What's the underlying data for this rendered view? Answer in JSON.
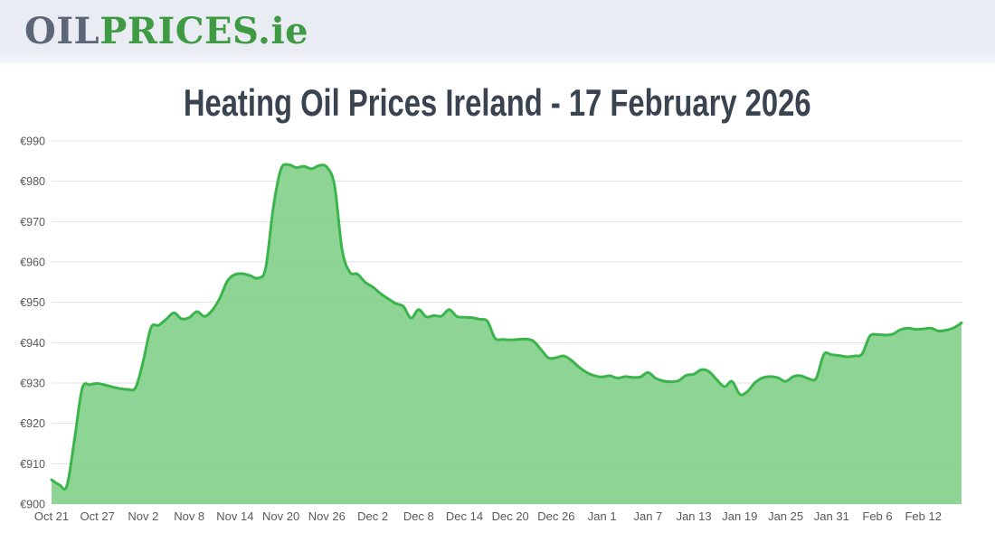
{
  "header": {
    "logo_oil": "OIL",
    "logo_prices": "PRICES",
    "logo_tld": ".ie"
  },
  "title": "Heating Oil Prices Ireland - 17 February 2026",
  "chart_data": {
    "type": "area",
    "title": "Heating Oil Prices Ireland - 17 February 2026",
    "currency_prefix": "€",
    "x_tick_labels": [
      "Oct 21",
      "Oct 27",
      "Nov 2",
      "Nov 8",
      "Nov 14",
      "Nov 20",
      "Nov 26",
      "Dec 2",
      "Dec 8",
      "Dec 14",
      "Dec 20",
      "Dec 26",
      "Jan 1",
      "Jan 7",
      "Jan 13",
      "Jan 19",
      "Jan 25",
      "Jan 31",
      "Feb 6",
      "Feb 12"
    ],
    "x_tick_interval_days": 6,
    "x_range_labels": [
      "Oct 21",
      "Feb 17"
    ],
    "y_ticks": [
      900,
      910,
      920,
      930,
      940,
      950,
      960,
      970,
      980,
      990
    ],
    "y_tick_labels": [
      "€900",
      "€910",
      "€920",
      "€930",
      "€940",
      "€950",
      "€960",
      "€970",
      "€980",
      "€990"
    ],
    "ylim": [
      900,
      990
    ],
    "grid": "horizontal",
    "legend": false,
    "line_color": "#3cb44c",
    "fill_color": "#7ecf86",
    "fill_opacity": 0.88,
    "grid_color": "#e2e2e2",
    "axis_label_color": "#58595b",
    "values": [
      906.0,
      904.8,
      904.5,
      916.0,
      928.6,
      929.6,
      929.9,
      929.5,
      929.0,
      928.6,
      928.4,
      928.9,
      935.5,
      943.7,
      944.3,
      945.8,
      947.4,
      945.9,
      946.2,
      947.7,
      946.5,
      948.0,
      951.0,
      955.3,
      956.9,
      957.1,
      956.6,
      956.0,
      958.5,
      973.5,
      983.0,
      984.1,
      983.4,
      983.7,
      983.1,
      983.9,
      983.5,
      979.0,
      963.0,
      957.5,
      957.0,
      955.0,
      953.8,
      952.2,
      950.9,
      949.7,
      949.0,
      946.1,
      948.2,
      946.4,
      946.7,
      946.6,
      948.2,
      946.5,
      946.3,
      946.2,
      945.8,
      945.3,
      941.1,
      940.8,
      940.7,
      940.8,
      940.9,
      940.4,
      938.3,
      936.2,
      936.3,
      936.7,
      935.6,
      933.9,
      932.6,
      931.8,
      931.5,
      931.8,
      931.2,
      931.6,
      931.4,
      931.5,
      932.6,
      931.2,
      930.5,
      930.3,
      930.6,
      931.9,
      932.2,
      933.3,
      932.8,
      930.8,
      929.1,
      930.4,
      927.2,
      927.9,
      930.1,
      931.3,
      931.6,
      931.3,
      930.4,
      931.6,
      931.8,
      931.1,
      931.2,
      937.1,
      937.0,
      936.8,
      936.5,
      936.7,
      937.2,
      941.6,
      942.0,
      941.9,
      942.1,
      943.2,
      943.6,
      943.3,
      943.4,
      943.6,
      942.9,
      943.1,
      943.7,
      944.9
    ]
  }
}
